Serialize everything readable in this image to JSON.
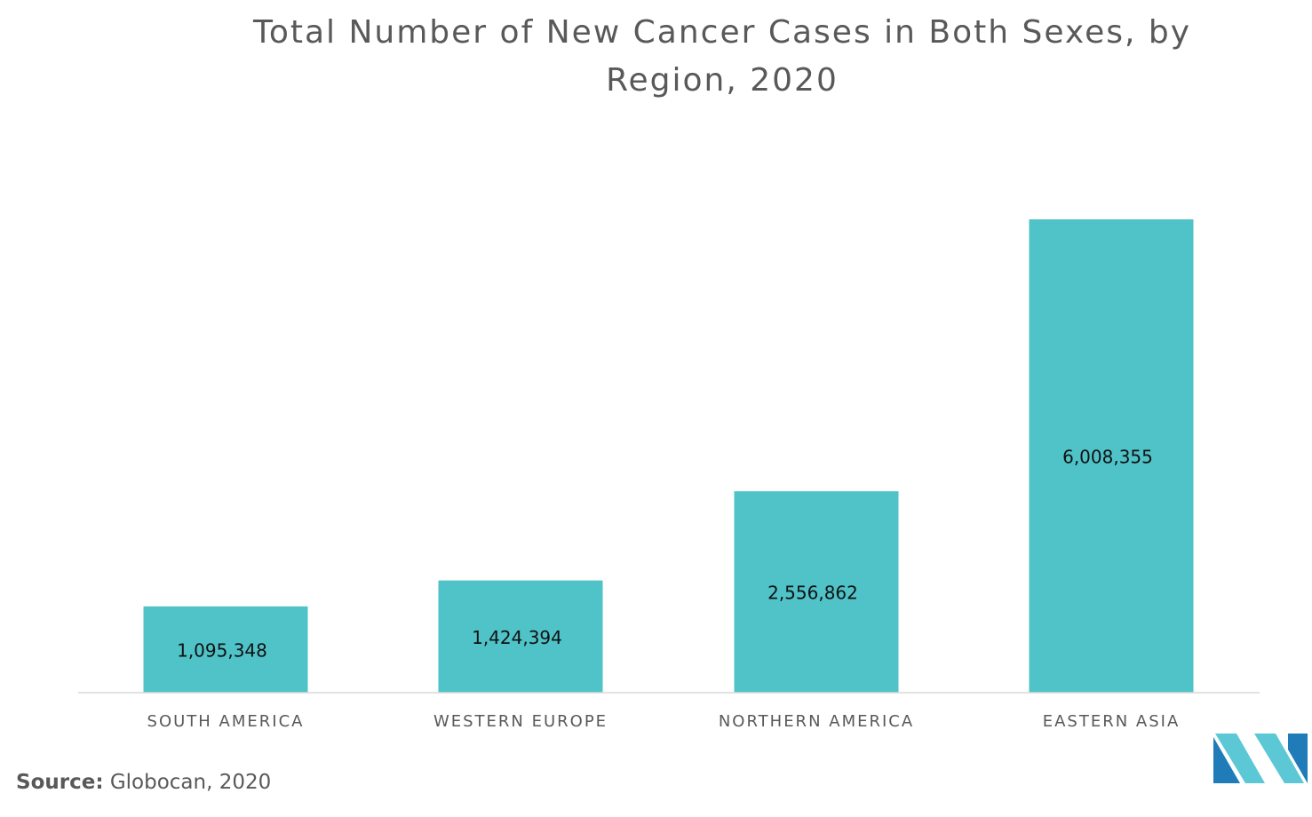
{
  "chart_data": {
    "type": "bar",
    "title": "Total Number of New Cancer Cases in Both Sexes, by Region, 2020",
    "categories": [
      "SOUTH AMERICA",
      "WESTERN EUROPE",
      "NORTHERN AMERICA",
      "EASTERN ASIA"
    ],
    "values": [
      1095348,
      1424394,
      2556862,
      6008355
    ],
    "value_labels": [
      "1,095,348",
      "1,424,394",
      "2,556,862",
      "6,008,355"
    ],
    "xlabel": "",
    "ylabel": "",
    "ylim": [
      0,
      6008355
    ],
    "grid": false,
    "legend": "none",
    "bar_color": "#4fc3c8",
    "axis_color": "#d9d9d9"
  },
  "source": {
    "label": "Source:",
    "text": " Globocan, 2020"
  },
  "logo": {
    "icon": "brand-logo-icon",
    "colors": [
      "#1f7cb8",
      "#5cc8d6"
    ]
  }
}
